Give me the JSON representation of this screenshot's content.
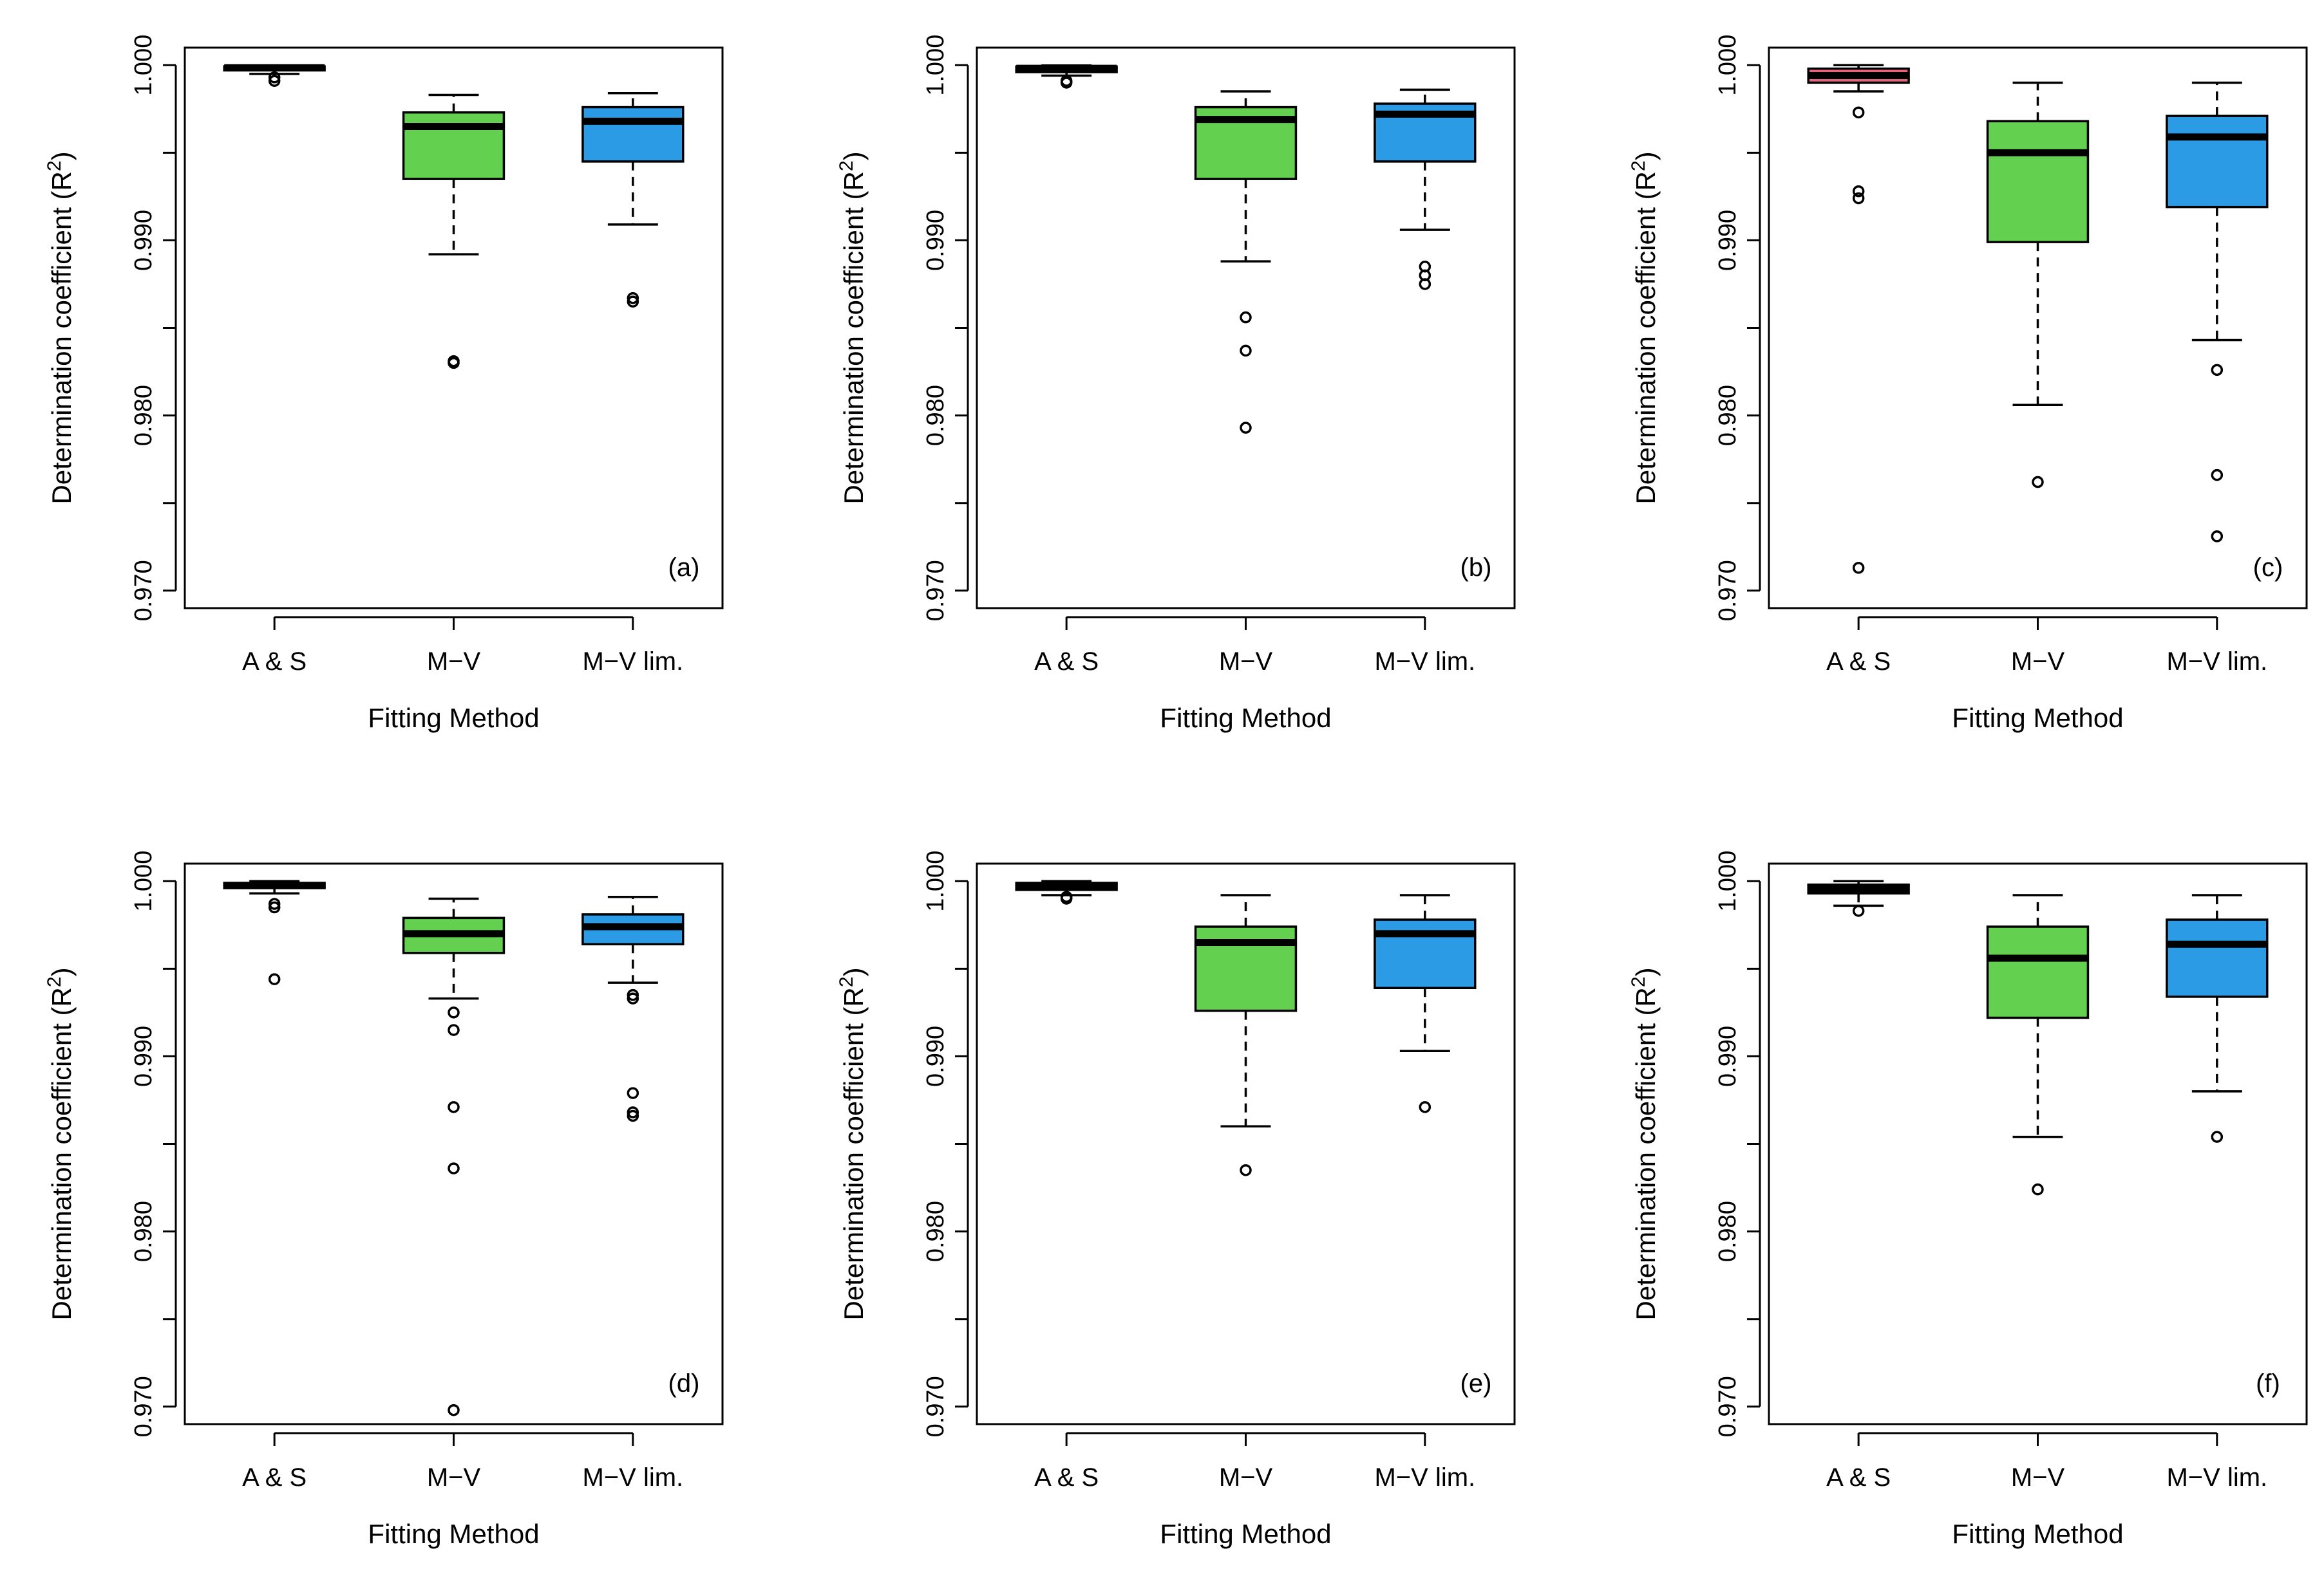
{
  "figure": {
    "layout": "2 rows x 3 columns",
    "box_colors": {
      "A & S": "#e8637a",
      "M-V": "#63d14f",
      "M-V lim.": "#2b9be6"
    },
    "median_color": "#000000"
  },
  "chart_data": [
    {
      "type": "boxplot",
      "panel_label": "(a)",
      "xlabel": "Fitting Method",
      "ylabel_text": "Determination coefficient",
      "ylabel_symbol": "(R",
      "ylabel_sup": "2",
      "ylabel_close": ")",
      "ylim": [
        0.969,
        1.001
      ],
      "yticks": [
        "0.970",
        "0.980",
        "0.990",
        "1.000"
      ],
      "ytick_values": [
        0.97,
        0.975,
        0.98,
        0.985,
        0.99,
        0.995,
        1.0
      ],
      "categories": [
        "A & S",
        "M−V",
        "M−V lim."
      ],
      "boxes": [
        {
          "q1": 0.9997,
          "median": 0.99985,
          "q3": 0.99993,
          "whisker_low": 0.9995,
          "whisker_high": 0.99998,
          "outliers": [
            0.9991,
            0.9993
          ]
        },
        {
          "q1": 0.9935,
          "median": 0.9965,
          "q3": 0.9973,
          "whisker_low": 0.9892,
          "whisker_high": 0.9983,
          "outliers": [
            0.983,
            0.9831
          ]
        },
        {
          "q1": 0.9945,
          "median": 0.9968,
          "q3": 0.9976,
          "whisker_low": 0.9909,
          "whisker_high": 0.9984,
          "outliers": [
            0.9865,
            0.9867
          ]
        }
      ]
    },
    {
      "type": "boxplot",
      "panel_label": "(b)",
      "xlabel": "Fitting Method",
      "ylabel_text": "Determination coefficient",
      "ylabel_symbol": "(R",
      "ylabel_sup": "2",
      "ylabel_close": ")",
      "ylim": [
        0.969,
        1.001
      ],
      "yticks": [
        "0.970",
        "0.980",
        "0.990",
        "1.000"
      ],
      "ytick_values": [
        0.97,
        0.975,
        0.98,
        0.985,
        0.99,
        0.995,
        1.0
      ],
      "categories": [
        "A & S",
        "M−V",
        "M−V lim."
      ],
      "boxes": [
        {
          "q1": 0.9996,
          "median": 0.99982,
          "q3": 0.99992,
          "whisker_low": 0.9994,
          "whisker_high": 0.99998,
          "outliers": [
            0.999,
            0.9991
          ]
        },
        {
          "q1": 0.9935,
          "median": 0.9969,
          "q3": 0.9976,
          "whisker_low": 0.9888,
          "whisker_high": 0.9985,
          "outliers": [
            0.9856,
            0.9837,
            0.9793
          ]
        },
        {
          "q1": 0.9945,
          "median": 0.9972,
          "q3": 0.9978,
          "whisker_low": 0.9906,
          "whisker_high": 0.9986,
          "outliers": [
            0.9885,
            0.988,
            0.9875
          ]
        }
      ]
    },
    {
      "type": "boxplot",
      "panel_label": "(c)",
      "xlabel": "Fitting Method",
      "ylabel_text": "Determination coefficient",
      "ylabel_symbol": "(R",
      "ylabel_sup": "2",
      "ylabel_close": ")",
      "ylim": [
        0.969,
        1.001
      ],
      "yticks": [
        "0.970",
        "0.980",
        "0.990",
        "1.000"
      ],
      "ytick_values": [
        0.97,
        0.975,
        0.98,
        0.985,
        0.99,
        0.995,
        1.0
      ],
      "categories": [
        "A & S",
        "M−V",
        "M−V lim."
      ],
      "boxes": [
        {
          "q1": 0.999,
          "median": 0.9994,
          "q3": 0.9998,
          "whisker_low": 0.9985,
          "whisker_high": 1.0,
          "outliers": [
            0.9973,
            0.9928,
            0.9924,
            0.9713
          ]
        },
        {
          "q1": 0.9899,
          "median": 0.995,
          "q3": 0.9968,
          "whisker_low": 0.9806,
          "whisker_high": 0.999,
          "outliers": [
            0.9762
          ]
        },
        {
          "q1": 0.9919,
          "median": 0.9959,
          "q3": 0.9971,
          "whisker_low": 0.9843,
          "whisker_high": 0.999,
          "outliers": [
            0.9826,
            0.9766,
            0.9731
          ]
        }
      ]
    },
    {
      "type": "boxplot",
      "panel_label": "(d)",
      "xlabel": "Fitting Method",
      "ylabel_text": "Determination coefficient",
      "ylabel_symbol": "(R",
      "ylabel_sup": "2",
      "ylabel_close": ")",
      "ylim": [
        0.969,
        1.001
      ],
      "yticks": [
        "0.970",
        "0.980",
        "0.990",
        "1.000"
      ],
      "ytick_values": [
        0.97,
        0.975,
        0.98,
        0.985,
        0.99,
        0.995,
        1.0
      ],
      "categories": [
        "A & S",
        "M−V",
        "M−V lim."
      ],
      "boxes": [
        {
          "q1": 0.9996,
          "median": 0.99975,
          "q3": 0.9999,
          "whisker_low": 0.9993,
          "whisker_high": 1.0,
          "outliers": [
            0.9987,
            0.9985,
            0.9944
          ]
        },
        {
          "q1": 0.9959,
          "median": 0.997,
          "q3": 0.9979,
          "whisker_low": 0.9933,
          "whisker_high": 0.999,
          "outliers": [
            0.9925,
            0.9915,
            0.9871,
            0.9836,
            0.9698
          ]
        },
        {
          "q1": 0.9964,
          "median": 0.9974,
          "q3": 0.9981,
          "whisker_low": 0.9942,
          "whisker_high": 0.9991,
          "outliers": [
            0.9935,
            0.9933,
            0.9879,
            0.9868,
            0.9866
          ]
        }
      ]
    },
    {
      "type": "boxplot",
      "panel_label": "(e)",
      "xlabel": "Fitting Method",
      "ylabel_text": "Determination coefficient",
      "ylabel_symbol": "(R",
      "ylabel_sup": "2",
      "ylabel_close": ")",
      "ylim": [
        0.969,
        1.001
      ],
      "yticks": [
        "0.970",
        "0.980",
        "0.990",
        "1.000"
      ],
      "ytick_values": [
        0.97,
        0.975,
        0.98,
        0.985,
        0.99,
        0.995,
        1.0
      ],
      "categories": [
        "A & S",
        "M−V",
        "M−V lim."
      ],
      "boxes": [
        {
          "q1": 0.9995,
          "median": 0.99975,
          "q3": 0.9999,
          "whisker_low": 0.9992,
          "whisker_high": 1.0,
          "outliers": [
            0.999,
            0.9991
          ]
        },
        {
          "q1": 0.9926,
          "median": 0.9965,
          "q3": 0.9974,
          "whisker_low": 0.986,
          "whisker_high": 0.9992,
          "outliers": [
            0.9835
          ]
        },
        {
          "q1": 0.9939,
          "median": 0.997,
          "q3": 0.9978,
          "whisker_low": 0.9903,
          "whisker_high": 0.9992,
          "outliers": [
            0.9871
          ]
        }
      ]
    },
    {
      "type": "boxplot",
      "panel_label": "(f)",
      "xlabel": "Fitting Method",
      "ylabel_text": "Determination coefficient",
      "ylabel_symbol": "(R",
      "ylabel_sup": "2",
      "ylabel_close": ")",
      "ylim": [
        0.969,
        1.001
      ],
      "yticks": [
        "0.970",
        "0.980",
        "0.990",
        "1.000"
      ],
      "ytick_values": [
        0.97,
        0.975,
        0.98,
        0.985,
        0.99,
        0.995,
        1.0
      ],
      "categories": [
        "A & S",
        "M−V",
        "M−V lim."
      ],
      "boxes": [
        {
          "q1": 0.9993,
          "median": 0.99955,
          "q3": 0.9998,
          "whisker_low": 0.9986,
          "whisker_high": 1.0,
          "outliers": [
            0.9983
          ]
        },
        {
          "q1": 0.9922,
          "median": 0.9956,
          "q3": 0.9974,
          "whisker_low": 0.9854,
          "whisker_high": 0.9992,
          "outliers": [
            0.9824
          ]
        },
        {
          "q1": 0.9934,
          "median": 0.9964,
          "q3": 0.9978,
          "whisker_low": 0.988,
          "whisker_high": 0.9992,
          "outliers": [
            0.9854
          ]
        }
      ]
    }
  ]
}
